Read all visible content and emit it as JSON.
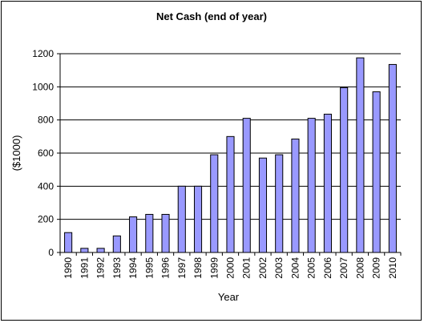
{
  "chart_data": {
    "type": "bar",
    "title": "Net Cash (end of year)",
    "xlabel": "Year",
    "ylabel": "($1000)",
    "ylim": [
      0,
      1200
    ],
    "yticks": [
      0,
      200,
      400,
      600,
      800,
      1000,
      1200
    ],
    "grid": true,
    "legend": "none",
    "categories": [
      "1990",
      "1991",
      "1992",
      "1993",
      "1994",
      "1995",
      "1996",
      "1997",
      "1998",
      "1999",
      "2000",
      "2001",
      "2002",
      "2003",
      "2004",
      "2005",
      "2006",
      "2007",
      "2008",
      "2009",
      "2010"
    ],
    "values": [
      120,
      25,
      25,
      100,
      215,
      230,
      230,
      400,
      400,
      590,
      700,
      810,
      570,
      590,
      685,
      810,
      835,
      995,
      1175,
      970,
      1135
    ],
    "colors": {
      "bar_fill": "#9999ff",
      "bar_stroke": "#000000",
      "grid": "#000000",
      "frame": "#000000"
    }
  }
}
